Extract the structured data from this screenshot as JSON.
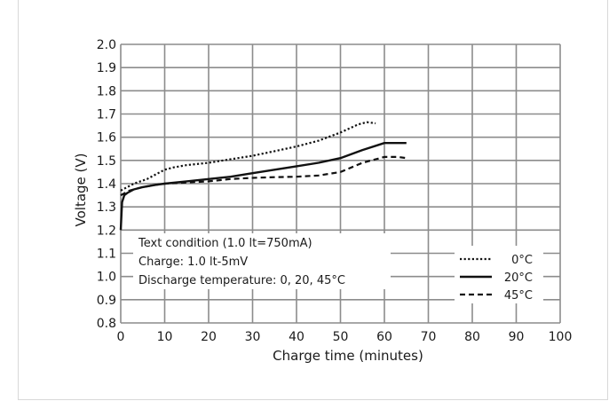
{
  "chart_data": {
    "type": "line",
    "xlabel": "Charge time (minutes)",
    "ylabel": "Voltage (V)",
    "xlim": [
      0,
      100
    ],
    "ylim": [
      0.8,
      2.0
    ],
    "xticks": [
      0,
      10,
      20,
      30,
      40,
      50,
      60,
      70,
      80,
      90,
      100
    ],
    "yticks": [
      0.8,
      0.9,
      1.0,
      1.1,
      1.2,
      1.3,
      1.4,
      1.5,
      1.6,
      1.7,
      1.8,
      1.9,
      2.0
    ],
    "grid": true,
    "annotation": [
      "Text condition (1.0 lt=750mA)",
      "Charge: 1.0 lt-5mV",
      "Discharge temperature: 0, 20, 45°C"
    ],
    "legend_position": "bottom-right",
    "series": [
      {
        "name": "0°C",
        "style": "dotted",
        "x": [
          0,
          1,
          3,
          6,
          8,
          10,
          12,
          15,
          20,
          25,
          30,
          35,
          40,
          45,
          50,
          54,
          56,
          58
        ],
        "y": [
          1.37,
          1.38,
          1.4,
          1.42,
          1.44,
          1.46,
          1.47,
          1.48,
          1.49,
          1.505,
          1.52,
          1.54,
          1.56,
          1.585,
          1.62,
          1.655,
          1.665,
          1.66
        ]
      },
      {
        "name": "20°C",
        "style": "solid",
        "x": [
          0,
          0.3,
          0.8,
          1.5,
          3,
          5,
          8,
          10,
          15,
          20,
          25,
          30,
          35,
          40,
          45,
          50,
          55,
          60,
          65
        ],
        "y": [
          1.2,
          1.32,
          1.35,
          1.36,
          1.375,
          1.385,
          1.395,
          1.4,
          1.41,
          1.42,
          1.43,
          1.445,
          1.46,
          1.475,
          1.49,
          1.51,
          1.545,
          1.575,
          1.575
        ]
      },
      {
        "name": "45°C",
        "style": "dashed",
        "x": [
          0,
          2,
          5,
          8,
          10,
          15,
          20,
          25,
          30,
          35,
          40,
          45,
          50,
          55,
          60,
          63,
          65
        ],
        "y": [
          1.35,
          1.37,
          1.385,
          1.395,
          1.4,
          1.405,
          1.41,
          1.42,
          1.425,
          1.428,
          1.43,
          1.435,
          1.45,
          1.49,
          1.515,
          1.515,
          1.51
        ]
      }
    ]
  }
}
